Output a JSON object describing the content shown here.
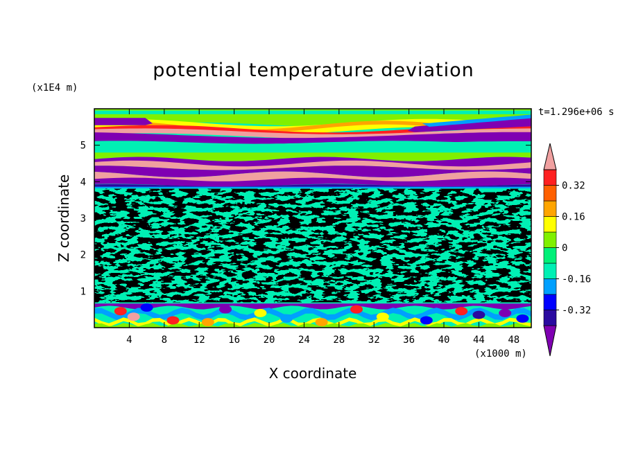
{
  "title": "potential temperature deviation",
  "time_label": "t=1.296e+06 s",
  "chart_data": {
    "type": "heatmap",
    "title": "potential temperature deviation",
    "xlabel": "X coordinate",
    "ylabel": "Z coordinate",
    "x_unit": "(x1000 m)",
    "y_unit": "(x1E4 m)",
    "xlim": [
      0,
      50
    ],
    "ylim": [
      0,
      6
    ],
    "x_ticks": [
      4,
      8,
      12,
      16,
      20,
      24,
      28,
      32,
      36,
      40,
      44,
      48
    ],
    "y_ticks": [
      1,
      2,
      3,
      4,
      5
    ],
    "colorbar": {
      "levels": [
        -0.4,
        -0.32,
        -0.24,
        -0.16,
        -0.08,
        0,
        0.08,
        0.16,
        0.24,
        0.32,
        0.4
      ],
      "tick_labels": [
        "0.32",
        "0.16",
        "0",
        "-0.16",
        "-0.32"
      ],
      "tick_values": [
        0.32,
        0.16,
        0,
        -0.16,
        -0.32
      ],
      "colors": [
        "#7f00b2",
        "#2a0aa0",
        "#0000ff",
        "#00a0ff",
        "#00f0b4",
        "#00f078",
        "#80f000",
        "#ffff00",
        "#ffa500",
        "#ff6000",
        "#ff2020",
        "#f0a0a0"
      ],
      "extend": "both"
    },
    "layers": [
      {
        "z": [
          0.0,
          0.7
        ],
        "pattern": "turbulent boundary layer, mixed values -0.4 to 0.4"
      },
      {
        "z": [
          0.7,
          3.8
        ],
        "pattern": "near zero, values -0.08 to 0.08"
      },
      {
        "z": [
          3.8,
          4.8
        ],
        "pattern": "alternating bands of -0.4 and 0.4"
      },
      {
        "z": [
          4.8,
          5.9
        ],
        "pattern": "banded, -0.4 to 0.4"
      }
    ]
  }
}
